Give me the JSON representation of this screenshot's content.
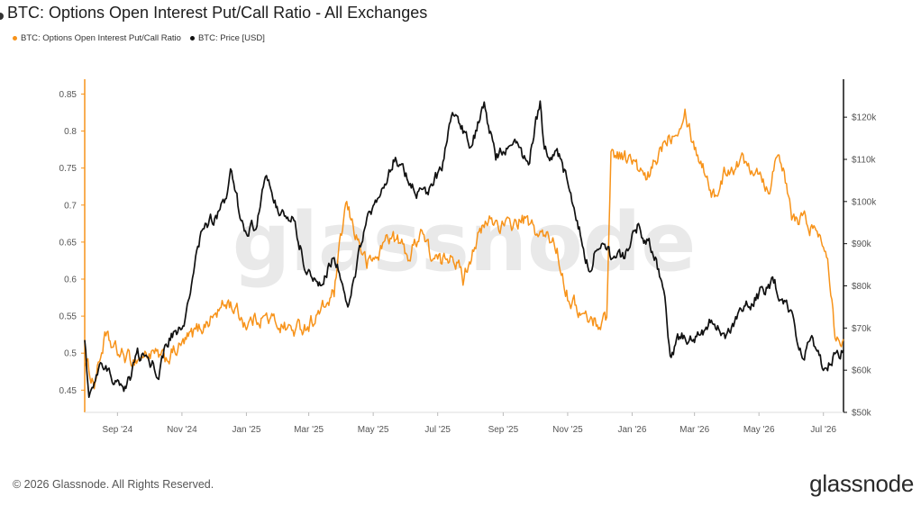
{
  "title": "BTC: Options Open Interest Put/Call Ratio - All Exchanges",
  "legend": [
    {
      "label": "BTC: Options Open Interest Put/Call Ratio",
      "color": "#f7931a"
    },
    {
      "label": "BTC: Price [USD]",
      "color": "#111111"
    }
  ],
  "watermark": "glassnode",
  "footer": "© 2026 Glassnode. All Rights Reserved.",
  "logo_text": "glassnode",
  "chart_data": {
    "type": "line",
    "x_tick_labels": [
      "Sep '24",
      "Nov '24",
      "Jan '25",
      "Mar '25",
      "May '25",
      "Jul '25",
      "Sep '25",
      "Nov '25",
      "Jan '26",
      "Mar '26",
      "May '26",
      "Jul '26"
    ],
    "x_range": [
      "2024-08-01",
      "2026-07-20"
    ],
    "y_left": {
      "ticks": [
        "0.45",
        "0.5",
        "0.55",
        "0.6",
        "0.65",
        "0.7",
        "0.75",
        "0.8",
        "0.85"
      ],
      "range": [
        0.42,
        0.87
      ]
    },
    "y_right": {
      "ticks": [
        "$50k",
        "$60k",
        "$70k",
        "$80k",
        "$90k",
        "$100k",
        "$110k",
        "$120k"
      ],
      "range": [
        50000,
        129000
      ]
    },
    "series": [
      {
        "name": "BTC: Options Open Interest Put/Call Ratio",
        "axis": "left",
        "color": "#f7931a",
        "points": [
          [
            "2024-08-01",
            0.49
          ],
          [
            "2024-08-10",
            0.46
          ],
          [
            "2024-08-20",
            0.52
          ],
          [
            "2024-09-01",
            0.5
          ],
          [
            "2024-09-15",
            0.49
          ],
          [
            "2024-10-01",
            0.5
          ],
          [
            "2024-10-15",
            0.49
          ],
          [
            "2024-11-01",
            0.51
          ],
          [
            "2024-11-15",
            0.53
          ],
          [
            "2024-12-01",
            0.55
          ],
          [
            "2024-12-15",
            0.57
          ],
          [
            "2025-01-01",
            0.54
          ],
          [
            "2025-01-15",
            0.55
          ],
          [
            "2025-02-01",
            0.54
          ],
          [
            "2025-02-15",
            0.53
          ],
          [
            "2025-03-01",
            0.54
          ],
          [
            "2025-03-15",
            0.56
          ],
          [
            "2025-03-25",
            0.58
          ],
          [
            "2025-04-05",
            0.7
          ],
          [
            "2025-04-15",
            0.66
          ],
          [
            "2025-04-25",
            0.62
          ],
          [
            "2025-05-05",
            0.63
          ],
          [
            "2025-05-15",
            0.66
          ],
          [
            "2025-05-25",
            0.65
          ],
          [
            "2025-06-05",
            0.63
          ],
          [
            "2025-06-15",
            0.67
          ],
          [
            "2025-06-25",
            0.63
          ],
          [
            "2025-07-05",
            0.62
          ],
          [
            "2025-07-15",
            0.64
          ],
          [
            "2025-07-25",
            0.6
          ],
          [
            "2025-08-05",
            0.65
          ],
          [
            "2025-08-20",
            0.68
          ],
          [
            "2025-09-05",
            0.67
          ],
          [
            "2025-09-20",
            0.68
          ],
          [
            "2025-10-05",
            0.66
          ],
          [
            "2025-10-20",
            0.65
          ],
          [
            "2025-11-01",
            0.58
          ],
          [
            "2025-11-15",
            0.55
          ],
          [
            "2025-12-01",
            0.54
          ],
          [
            "2025-12-08",
            0.55
          ],
          [
            "2025-12-12",
            0.77
          ],
          [
            "2025-12-20",
            0.77
          ],
          [
            "2026-01-01",
            0.76
          ],
          [
            "2026-01-15",
            0.73
          ],
          [
            "2026-02-01",
            0.79
          ],
          [
            "2026-02-10",
            0.8
          ],
          [
            "2026-02-20",
            0.83
          ],
          [
            "2026-03-01",
            0.78
          ],
          [
            "2026-03-10",
            0.75
          ],
          [
            "2026-03-20",
            0.71
          ],
          [
            "2026-04-01",
            0.75
          ],
          [
            "2026-04-15",
            0.76
          ],
          [
            "2026-05-01",
            0.75
          ],
          [
            "2026-05-10",
            0.72
          ],
          [
            "2026-05-20",
            0.78
          ],
          [
            "2026-06-01",
            0.68
          ],
          [
            "2026-06-15",
            0.68
          ],
          [
            "2026-06-25",
            0.66
          ],
          [
            "2026-07-05",
            0.64
          ],
          [
            "2026-07-12",
            0.53
          ],
          [
            "2026-07-20",
            0.52
          ]
        ]
      },
      {
        "name": "BTC: Price [USD]",
        "axis": "right",
        "color": "#111111",
        "points": [
          [
            "2024-08-01",
            66000
          ],
          [
            "2024-08-05",
            54000
          ],
          [
            "2024-08-15",
            60000
          ],
          [
            "2024-09-01",
            58000
          ],
          [
            "2024-09-07",
            54000
          ],
          [
            "2024-09-20",
            63000
          ],
          [
            "2024-10-01",
            62000
          ],
          [
            "2024-10-10",
            60000
          ],
          [
            "2024-10-20",
            68000
          ],
          [
            "2024-11-01",
            69000
          ],
          [
            "2024-11-10",
            80000
          ],
          [
            "2024-11-20",
            93000
          ],
          [
            "2024-12-01",
            96000
          ],
          [
            "2024-12-10",
            99000
          ],
          [
            "2024-12-17",
            106000
          ],
          [
            "2024-12-30",
            93000
          ],
          [
            "2025-01-10",
            94000
          ],
          [
            "2025-01-20",
            106000
          ],
          [
            "2025-02-01",
            98000
          ],
          [
            "2025-02-15",
            96000
          ],
          [
            "2025-02-25",
            85000
          ],
          [
            "2025-03-10",
            80000
          ],
          [
            "2025-03-25",
            87000
          ],
          [
            "2025-04-08",
            76000
          ],
          [
            "2025-04-22",
            93000
          ],
          [
            "2025-05-10",
            103000
          ],
          [
            "2025-05-22",
            111000
          ],
          [
            "2025-06-05",
            104000
          ],
          [
            "2025-06-20",
            101000
          ],
          [
            "2025-07-05",
            108000
          ],
          [
            "2025-07-14",
            121000
          ],
          [
            "2025-07-25",
            117000
          ],
          [
            "2025-08-02",
            113000
          ],
          [
            "2025-08-14",
            123000
          ],
          [
            "2025-08-25",
            111000
          ],
          [
            "2025-09-10",
            114000
          ],
          [
            "2025-09-25",
            109000
          ],
          [
            "2025-10-06",
            124000
          ],
          [
            "2025-10-10",
            112000
          ],
          [
            "2025-10-25",
            111000
          ],
          [
            "2025-11-05",
            101000
          ],
          [
            "2025-11-21",
            84000
          ],
          [
            "2025-12-01",
            91000
          ],
          [
            "2025-12-15",
            86000
          ],
          [
            "2025-12-25",
            87000
          ],
          [
            "2026-01-06",
            94000
          ],
          [
            "2026-01-20",
            89000
          ],
          [
            "2026-02-01",
            78000
          ],
          [
            "2026-02-06",
            63000
          ],
          [
            "2026-02-15",
            68000
          ],
          [
            "2026-03-01",
            67000
          ],
          [
            "2026-03-15",
            71000
          ],
          [
            "2026-04-01",
            68000
          ],
          [
            "2026-04-15",
            74000
          ],
          [
            "2026-05-01",
            78000
          ],
          [
            "2026-05-15",
            81000
          ],
          [
            "2026-05-30",
            74000
          ],
          [
            "2026-06-10",
            64000
          ],
          [
            "2026-06-20",
            66000
          ],
          [
            "2026-07-01",
            61000
          ],
          [
            "2026-07-10",
            63000
          ],
          [
            "2026-07-20",
            65000
          ]
        ]
      }
    ]
  }
}
